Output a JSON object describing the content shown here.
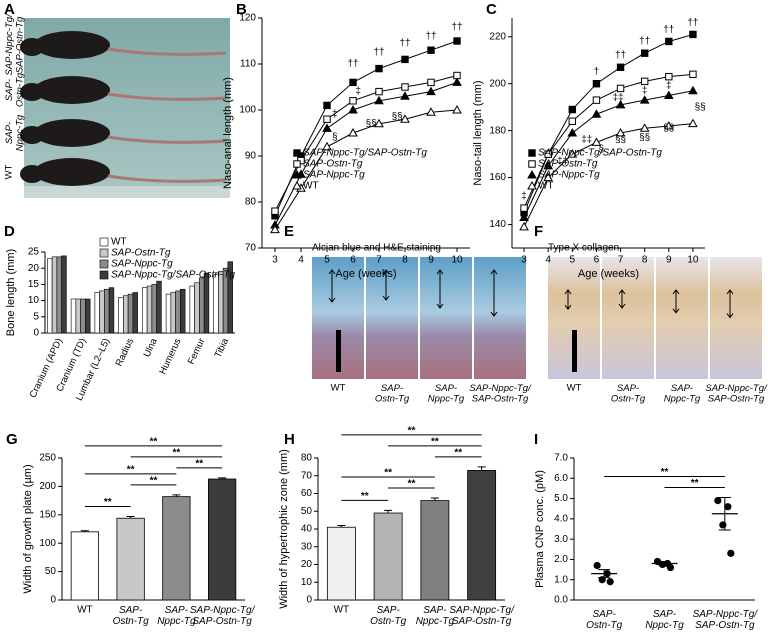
{
  "image_panels": [
    {
      "panel": "A",
      "labels": [
        "SAP-Nppc-Tg/SAP-Ostn-Tg",
        "SAP-Ostn-Tg",
        "SAP-Nppc-Tg",
        "WT"
      ]
    },
    {
      "panel": "E",
      "title": "Alcian blue and H&E staining",
      "labels": [
        "WT",
        "SAP-Ostn-Tg",
        "SAP-Nppc-Tg",
        "SAP-Nppc-Tg/SAP-Ostn-Tg"
      ]
    },
    {
      "panel": "F",
      "title": "Type X collagen",
      "labels": [
        "WT",
        "SAP-Ostn-Tg",
        "SAP-Nppc-Tg",
        "SAP-Nppc-Tg/SAP-Ostn-Tg"
      ]
    }
  ],
  "chart_data": [
    {
      "panel": "B",
      "type": "line",
      "xlabel": "Age (weeks)",
      "ylabel": "Naso-anal length (mm)",
      "x": [
        3,
        4,
        5,
        6,
        7,
        8,
        9,
        10
      ],
      "xlim": [
        2.5,
        10.5
      ],
      "xticks": [
        3,
        4,
        5,
        6,
        7,
        8,
        9,
        10
      ],
      "ylim": [
        70,
        120
      ],
      "yticks": [
        70,
        80,
        90,
        100,
        110,
        120
      ],
      "legend": "lower right",
      "series": [
        {
          "name": "SAP-Nppc-Tg/SAP-Ostn-Tg",
          "color": "#000000",
          "marker": "filled-square",
          "values": [
            77,
            90,
            101,
            106,
            109,
            111,
            113,
            115
          ]
        },
        {
          "name": "SAP-Ostn-Tg",
          "color": "#000000",
          "marker": "open-square",
          "values": [
            78,
            89,
            98,
            102,
            104,
            105,
            106,
            107.5
          ]
        },
        {
          "name": "SAP-Nppc-Tg",
          "color": "#000000",
          "marker": "filled-triangle",
          "values": [
            75,
            86,
            96,
            100,
            102,
            103,
            104,
            106
          ]
        },
        {
          "name": "WT",
          "color": "#000000",
          "marker": "open-triangle",
          "values": [
            74,
            83,
            92,
            95,
            97,
            98,
            99.5,
            100
          ]
        }
      ],
      "annotations": [
        {
          "x": 6,
          "y": 110,
          "text": "††"
        },
        {
          "x": 7,
          "y": 112.5,
          "text": "††"
        },
        {
          "x": 8,
          "y": 114.5,
          "text": "††"
        },
        {
          "x": 9,
          "y": 116,
          "text": "††"
        },
        {
          "x": 10,
          "y": 118,
          "text": "††"
        },
        {
          "x": 6.2,
          "y": 104,
          "text": "‡"
        },
        {
          "x": 5.3,
          "y": 99,
          "text": "‡"
        },
        {
          "x": 5.3,
          "y": 94,
          "text": "§"
        },
        {
          "x": 6.7,
          "y": 97,
          "text": "§§"
        },
        {
          "x": 7.7,
          "y": 98.5,
          "text": "§§"
        }
      ]
    },
    {
      "panel": "C",
      "type": "line",
      "xlabel": "Age (weeks)",
      "ylabel": "Naso-tail length (mm)",
      "x": [
        3,
        4,
        5,
        6,
        7,
        8,
        9,
        10
      ],
      "xlim": [
        2.5,
        10.5
      ],
      "xticks": [
        3,
        4,
        5,
        6,
        7,
        8,
        9,
        10
      ],
      "ylim": [
        130,
        228
      ],
      "yticks": [
        140,
        160,
        180,
        200,
        220
      ],
      "legend": "lower right",
      "series": [
        {
          "name": "SAP-Nppc-Tg/SAP-Ostn-Tg",
          "color": "#000000",
          "marker": "filled-square",
          "values": [
            145,
            170,
            189,
            200,
            207,
            213,
            218,
            221
          ]
        },
        {
          "name": "SAP-Ostn-Tg",
          "color": "#000000",
          "marker": "open-square",
          "values": [
            147,
            170,
            184,
            193,
            198,
            201,
            203,
            204
          ]
        },
        {
          "name": "SAP-Nppc-Tg",
          "color": "#000000",
          "marker": "filled-triangle",
          "values": [
            143,
            165,
            179,
            187,
            191,
            193,
            195,
            197
          ]
        },
        {
          "name": "WT",
          "color": "#000000",
          "marker": "open-triangle",
          "values": [
            139,
            160,
            170,
            175,
            179,
            181,
            182,
            183
          ]
        }
      ],
      "annotations": [
        {
          "x": 3,
          "y": 152,
          "text": "‡"
        },
        {
          "x": 6,
          "y": 205,
          "text": "†"
        },
        {
          "x": 7,
          "y": 212,
          "text": "††"
        },
        {
          "x": 8,
          "y": 218,
          "text": "††"
        },
        {
          "x": 9,
          "y": 223,
          "text": "††"
        },
        {
          "x": 10,
          "y": 226,
          "text": "††"
        },
        {
          "x": 4.6,
          "y": 167,
          "text": "‡‡"
        },
        {
          "x": 6.9,
          "y": 194,
          "text": "‡‡"
        },
        {
          "x": 8,
          "y": 197,
          "text": "‡"
        },
        {
          "x": 9,
          "y": 199,
          "text": "‡"
        },
        {
          "x": 5.6,
          "y": 176,
          "text": "‡‡"
        },
        {
          "x": 6.2,
          "y": 172,
          "text": "§"
        },
        {
          "x": 7,
          "y": 176,
          "text": "§§"
        },
        {
          "x": 8,
          "y": 177,
          "text": "§§"
        },
        {
          "x": 9,
          "y": 181,
          "text": "§§"
        },
        {
          "x": 10.3,
          "y": 190,
          "text": "§§"
        }
      ]
    },
    {
      "panel": "D",
      "type": "bar",
      "ylabel": "Bone length (mm)",
      "categories": [
        "Cranium (APD)",
        "Cranium (TD)",
        "Lumbar (L2–L5)",
        "Radius",
        "Ulna",
        "Humerus",
        "Femur",
        "Tibia"
      ],
      "ylim": [
        0,
        25
      ],
      "yticks": [
        0,
        5,
        10,
        15,
        20,
        25
      ],
      "legend": "upper right",
      "series": [
        {
          "name": "WT",
          "color": "#ffffff",
          "values": [
            23,
            10.5,
            12.5,
            11,
            14,
            12,
            14.5,
            18
          ]
        },
        {
          "name": "SAP-Ostn-Tg",
          "color": "#c8c8c8",
          "values": [
            23.5,
            10.5,
            13,
            11.5,
            14.5,
            12.5,
            15.5,
            19
          ]
        },
        {
          "name": "SAP-Nppc-Tg",
          "color": "#8c8c8c",
          "values": [
            23.5,
            10.5,
            13.5,
            12,
            15,
            13,
            17,
            20
          ]
        },
        {
          "name": "SAP-Nppc-Tg/SAP-Ostn-Tg",
          "color": "#3c3c3c",
          "values": [
            23.8,
            10.5,
            14,
            12.5,
            16,
            13.5,
            18.5,
            22
          ]
        }
      ]
    },
    {
      "panel": "G",
      "type": "bar",
      "ylabel": "Width of growth plate (µm)",
      "categories": [
        "WT",
        "SAP-Ostn-Tg",
        "SAP-Nppc-Tg",
        "SAP-Nppc-Tg/SAP-Ostn-Tg"
      ],
      "values": [
        120,
        144,
        182,
        213
      ],
      "errors": [
        2,
        3,
        3,
        2
      ],
      "colors": [
        "#ffffff",
        "#c8c8c8",
        "#8c8c8c",
        "#3c3c3c"
      ],
      "ylim": [
        0,
        250
      ],
      "yticks": [
        0,
        50,
        100,
        150,
        200,
        250
      ],
      "significance": [
        {
          "pair": [
            0,
            1
          ],
          "label": "**"
        },
        {
          "pair": [
            1,
            2
          ],
          "label": "**"
        },
        {
          "pair": [
            2,
            3
          ],
          "label": "**"
        },
        {
          "pair": [
            0,
            2
          ],
          "label": "**"
        },
        {
          "pair": [
            1,
            3
          ],
          "label": "**"
        },
        {
          "pair": [
            0,
            3
          ],
          "label": "**"
        }
      ]
    },
    {
      "panel": "H",
      "type": "bar",
      "ylabel": "Width of hypertrophic zone (mm)",
      "categories": [
        "WT",
        "SAP-Ostn-Tg",
        "SAP-Nppc-Tg",
        "SAP-Nppc-Tg/SAP-Ostn-Tg"
      ],
      "values": [
        41,
        49,
        56,
        73
      ],
      "errors": [
        1,
        1.5,
        1.5,
        2
      ],
      "colors": [
        "#f0f0f0",
        "#b4b4b4",
        "#808080",
        "#404040"
      ],
      "ylim": [
        0,
        80
      ],
      "yticks": [
        0,
        10,
        20,
        30,
        40,
        50,
        60,
        70,
        80
      ],
      "significance": [
        {
          "pair": [
            0,
            1
          ],
          "label": "**"
        },
        {
          "pair": [
            1,
            2
          ],
          "label": "**"
        },
        {
          "pair": [
            2,
            3
          ],
          "label": "**"
        },
        {
          "pair": [
            0,
            2
          ],
          "label": "**"
        },
        {
          "pair": [
            1,
            3
          ],
          "label": "**"
        },
        {
          "pair": [
            0,
            3
          ],
          "label": "**"
        }
      ]
    },
    {
      "panel": "I",
      "type": "dot",
      "ylabel": "Plasma CNP conc. (pM)",
      "categories": [
        "SAP-Ostn-Tg",
        "SAP-Nppc-Tg",
        "SAP-Nppc-Tg/SAP-Ostn-Tg"
      ],
      "points": [
        [
          1.7,
          1.3,
          1.0,
          0.9
        ],
        [
          1.9,
          1.8,
          1.75,
          1.6
        ],
        [
          4.9,
          4.6,
          3.7,
          2.3
        ]
      ],
      "means": [
        1.3,
        1.8,
        4.25
      ],
      "errors": [
        0.2,
        0.1,
        0.8
      ],
      "ylim": [
        0,
        7
      ],
      "yticks": [
        {
          "value": 0,
          "label": "0.0"
        },
        {
          "value": 1,
          "label": "1.0"
        },
        {
          "value": 2,
          "label": "2.0"
        },
        {
          "value": 3,
          "label": "3.0"
        },
        {
          "value": 4,
          "label": "4.0"
        },
        {
          "value": 5,
          "label": "5.0"
        },
        {
          "value": 6,
          "label": "6.0"
        },
        {
          "value": 7,
          "label": "7.0"
        }
      ],
      "significance": [
        {
          "pair": [
            1,
            2
          ],
          "label": "**"
        },
        {
          "pair": [
            0,
            2
          ],
          "label": "**"
        }
      ]
    }
  ]
}
